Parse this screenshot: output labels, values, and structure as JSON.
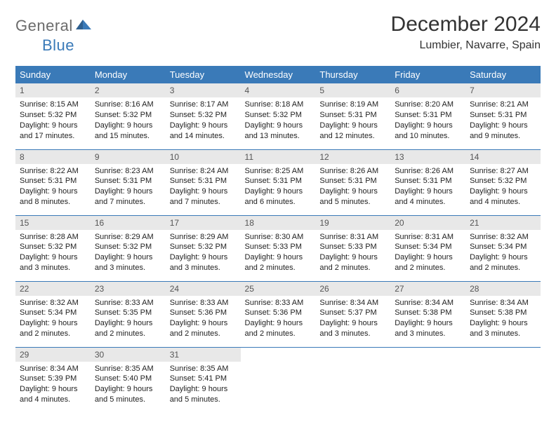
{
  "logo": {
    "word1": "General",
    "word2": "Blue"
  },
  "title": "December 2024",
  "location": "Lumbier, Navarre, Spain",
  "colors": {
    "header_bg": "#3a7ab8",
    "header_fg": "#ffffff",
    "daynum_bg": "#e8e8e8",
    "row_border": "#3a7ab8",
    "logo_gray": "#6b6b6b",
    "logo_blue": "#3a7ab8"
  },
  "day_headers": [
    "Sunday",
    "Monday",
    "Tuesday",
    "Wednesday",
    "Thursday",
    "Friday",
    "Saturday"
  ],
  "weeks": [
    [
      {
        "n": "1",
        "sr": "8:15 AM",
        "ss": "5:32 PM",
        "dl": "9 hours and 17 minutes."
      },
      {
        "n": "2",
        "sr": "8:16 AM",
        "ss": "5:32 PM",
        "dl": "9 hours and 15 minutes."
      },
      {
        "n": "3",
        "sr": "8:17 AM",
        "ss": "5:32 PM",
        "dl": "9 hours and 14 minutes."
      },
      {
        "n": "4",
        "sr": "8:18 AM",
        "ss": "5:32 PM",
        "dl": "9 hours and 13 minutes."
      },
      {
        "n": "5",
        "sr": "8:19 AM",
        "ss": "5:31 PM",
        "dl": "9 hours and 12 minutes."
      },
      {
        "n": "6",
        "sr": "8:20 AM",
        "ss": "5:31 PM",
        "dl": "9 hours and 10 minutes."
      },
      {
        "n": "7",
        "sr": "8:21 AM",
        "ss": "5:31 PM",
        "dl": "9 hours and 9 minutes."
      }
    ],
    [
      {
        "n": "8",
        "sr": "8:22 AM",
        "ss": "5:31 PM",
        "dl": "9 hours and 8 minutes."
      },
      {
        "n": "9",
        "sr": "8:23 AM",
        "ss": "5:31 PM",
        "dl": "9 hours and 7 minutes."
      },
      {
        "n": "10",
        "sr": "8:24 AM",
        "ss": "5:31 PM",
        "dl": "9 hours and 7 minutes."
      },
      {
        "n": "11",
        "sr": "8:25 AM",
        "ss": "5:31 PM",
        "dl": "9 hours and 6 minutes."
      },
      {
        "n": "12",
        "sr": "8:26 AM",
        "ss": "5:31 PM",
        "dl": "9 hours and 5 minutes."
      },
      {
        "n": "13",
        "sr": "8:26 AM",
        "ss": "5:31 PM",
        "dl": "9 hours and 4 minutes."
      },
      {
        "n": "14",
        "sr": "8:27 AM",
        "ss": "5:32 PM",
        "dl": "9 hours and 4 minutes."
      }
    ],
    [
      {
        "n": "15",
        "sr": "8:28 AM",
        "ss": "5:32 PM",
        "dl": "9 hours and 3 minutes."
      },
      {
        "n": "16",
        "sr": "8:29 AM",
        "ss": "5:32 PM",
        "dl": "9 hours and 3 minutes."
      },
      {
        "n": "17",
        "sr": "8:29 AM",
        "ss": "5:32 PM",
        "dl": "9 hours and 3 minutes."
      },
      {
        "n": "18",
        "sr": "8:30 AM",
        "ss": "5:33 PM",
        "dl": "9 hours and 2 minutes."
      },
      {
        "n": "19",
        "sr": "8:31 AM",
        "ss": "5:33 PM",
        "dl": "9 hours and 2 minutes."
      },
      {
        "n": "20",
        "sr": "8:31 AM",
        "ss": "5:34 PM",
        "dl": "9 hours and 2 minutes."
      },
      {
        "n": "21",
        "sr": "8:32 AM",
        "ss": "5:34 PM",
        "dl": "9 hours and 2 minutes."
      }
    ],
    [
      {
        "n": "22",
        "sr": "8:32 AM",
        "ss": "5:34 PM",
        "dl": "9 hours and 2 minutes."
      },
      {
        "n": "23",
        "sr": "8:33 AM",
        "ss": "5:35 PM",
        "dl": "9 hours and 2 minutes."
      },
      {
        "n": "24",
        "sr": "8:33 AM",
        "ss": "5:36 PM",
        "dl": "9 hours and 2 minutes."
      },
      {
        "n": "25",
        "sr": "8:33 AM",
        "ss": "5:36 PM",
        "dl": "9 hours and 2 minutes."
      },
      {
        "n": "26",
        "sr": "8:34 AM",
        "ss": "5:37 PM",
        "dl": "9 hours and 3 minutes."
      },
      {
        "n": "27",
        "sr": "8:34 AM",
        "ss": "5:38 PM",
        "dl": "9 hours and 3 minutes."
      },
      {
        "n": "28",
        "sr": "8:34 AM",
        "ss": "5:38 PM",
        "dl": "9 hours and 3 minutes."
      }
    ],
    [
      {
        "n": "29",
        "sr": "8:34 AM",
        "ss": "5:39 PM",
        "dl": "9 hours and 4 minutes."
      },
      {
        "n": "30",
        "sr": "8:35 AM",
        "ss": "5:40 PM",
        "dl": "9 hours and 5 minutes."
      },
      {
        "n": "31",
        "sr": "8:35 AM",
        "ss": "5:41 PM",
        "dl": "9 hours and 5 minutes."
      },
      null,
      null,
      null,
      null
    ]
  ],
  "labels": {
    "sunrise": "Sunrise: ",
    "sunset": "Sunset: ",
    "daylight": "Daylight: "
  }
}
